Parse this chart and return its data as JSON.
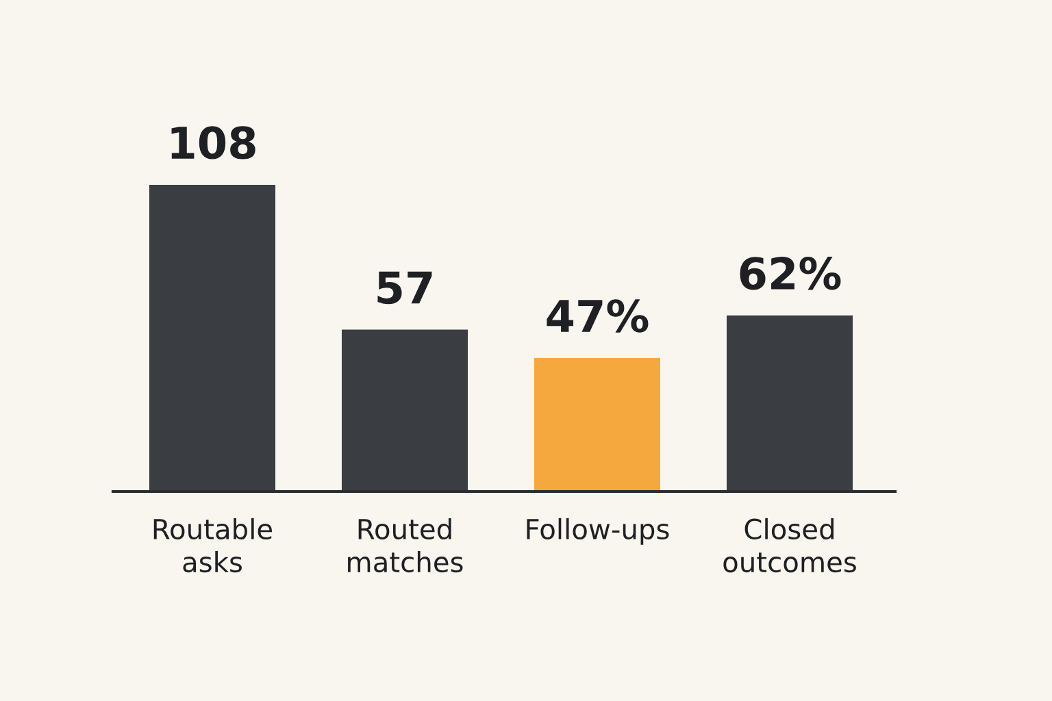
{
  "chart_data": {
    "type": "bar",
    "categories": [
      "Routable\nasks",
      "Routed\nmatches",
      "Follow-ups",
      "Closed\noutcomes"
    ],
    "values": [
      108,
      57,
      47,
      62
    ],
    "colors": [
      "#3a3d42",
      "#3a3d42",
      "#f5a83e",
      "#3a3d42"
    ],
    "value_labels": [
      "108",
      "57",
      "47%",
      "62%"
    ],
    "grid": false,
    "legend": false
  }
}
